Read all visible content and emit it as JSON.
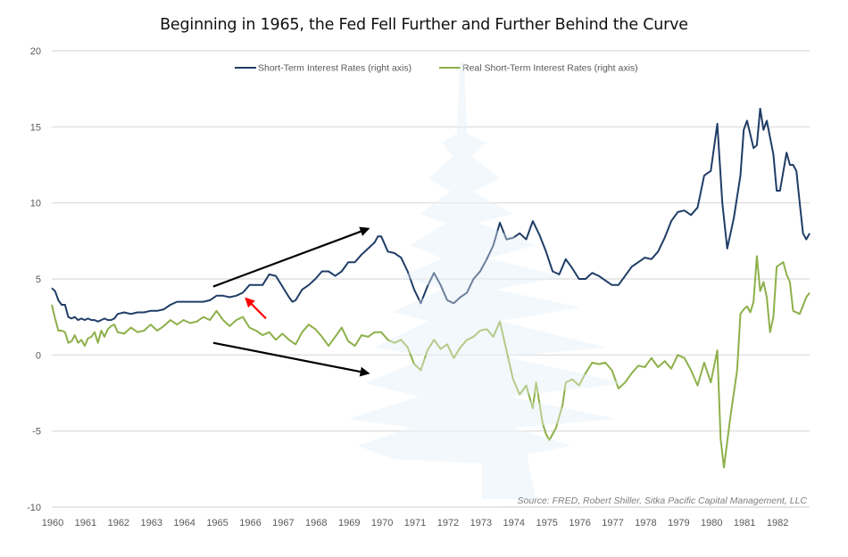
{
  "chart_data": {
    "type": "line",
    "title": "Beginning in 1965, the Fed Fell Further and Further Behind the Curve",
    "xlabel": "",
    "ylabel": "",
    "xlim": [
      1960,
      1983
    ],
    "ylim": [
      -10,
      20
    ],
    "y_ticks": [
      "20",
      "15",
      "10",
      "5",
      "0",
      "-5",
      "-10"
    ],
    "y_tick_values": [
      20,
      15,
      10,
      5,
      0,
      -5,
      -10
    ],
    "x_ticks": [
      "1960",
      "1961",
      "1962",
      "1963",
      "1964",
      "1965",
      "1966",
      "1967",
      "1968",
      "1969",
      "1970",
      "1971",
      "1972",
      "1973",
      "1974",
      "1975",
      "1976",
      "1977",
      "1978",
      "1979",
      "1980",
      "1981",
      "1982"
    ],
    "grid": true,
    "legend_position": "top",
    "source": "Source: FRED, Robert Shiller, Sitka Pacific Capital Management, LLC",
    "series": [
      {
        "name": "Short-Term Interest Rates (right axis)",
        "color": "#1f3d66",
        "points": [
          [
            1960.0,
            4.4
          ],
          [
            1960.1,
            4.2
          ],
          [
            1960.2,
            3.6
          ],
          [
            1960.3,
            3.3
          ],
          [
            1960.4,
            3.3
          ],
          [
            1960.5,
            2.5
          ],
          [
            1960.6,
            2.4
          ],
          [
            1960.7,
            2.5
          ],
          [
            1960.8,
            2.3
          ],
          [
            1960.9,
            2.4
          ],
          [
            1961.0,
            2.3
          ],
          [
            1961.1,
            2.4
          ],
          [
            1961.2,
            2.3
          ],
          [
            1961.3,
            2.3
          ],
          [
            1961.4,
            2.2
          ],
          [
            1961.5,
            2.3
          ],
          [
            1961.6,
            2.4
          ],
          [
            1961.7,
            2.3
          ],
          [
            1961.8,
            2.3
          ],
          [
            1961.9,
            2.4
          ],
          [
            1962.0,
            2.7
          ],
          [
            1962.2,
            2.8
          ],
          [
            1962.4,
            2.7
          ],
          [
            1962.6,
            2.8
          ],
          [
            1962.8,
            2.8
          ],
          [
            1963.0,
            2.9
          ],
          [
            1963.2,
            2.9
          ],
          [
            1963.4,
            3.0
          ],
          [
            1963.6,
            3.3
          ],
          [
            1963.8,
            3.5
          ],
          [
            1964.0,
            3.5
          ],
          [
            1964.2,
            3.5
          ],
          [
            1964.4,
            3.5
          ],
          [
            1964.6,
            3.5
          ],
          [
            1964.8,
            3.6
          ],
          [
            1965.0,
            3.9
          ],
          [
            1965.2,
            3.9
          ],
          [
            1965.4,
            3.8
          ],
          [
            1965.6,
            3.9
          ],
          [
            1965.8,
            4.1
          ],
          [
            1966.0,
            4.6
          ],
          [
            1966.2,
            4.6
          ],
          [
            1966.4,
            4.6
          ],
          [
            1966.6,
            5.3
          ],
          [
            1966.8,
            5.2
          ],
          [
            1967.0,
            4.5
          ],
          [
            1967.2,
            3.8
          ],
          [
            1967.3,
            3.5
          ],
          [
            1967.4,
            3.6
          ],
          [
            1967.6,
            4.3
          ],
          [
            1967.8,
            4.6
          ],
          [
            1968.0,
            5.0
          ],
          [
            1968.2,
            5.5
          ],
          [
            1968.4,
            5.5
          ],
          [
            1968.6,
            5.2
          ],
          [
            1968.8,
            5.5
          ],
          [
            1969.0,
            6.1
          ],
          [
            1969.2,
            6.1
          ],
          [
            1969.4,
            6.6
          ],
          [
            1969.6,
            7.0
          ],
          [
            1969.8,
            7.4
          ],
          [
            1969.9,
            7.8
          ],
          [
            1970.0,
            7.8
          ],
          [
            1970.2,
            6.8
          ],
          [
            1970.4,
            6.7
          ],
          [
            1970.6,
            6.4
          ],
          [
            1970.8,
            5.5
          ],
          [
            1971.0,
            4.3
          ],
          [
            1971.2,
            3.4
          ],
          [
            1971.4,
            4.5
          ],
          [
            1971.6,
            5.4
          ],
          [
            1971.8,
            4.6
          ],
          [
            1972.0,
            3.6
          ],
          [
            1972.2,
            3.4
          ],
          [
            1972.4,
            3.8
          ],
          [
            1972.6,
            4.1
          ],
          [
            1972.8,
            5.0
          ],
          [
            1973.0,
            5.5
          ],
          [
            1973.2,
            6.3
          ],
          [
            1973.4,
            7.2
          ],
          [
            1973.6,
            8.7
          ],
          [
            1973.8,
            7.6
          ],
          [
            1974.0,
            7.7
          ],
          [
            1974.2,
            8.0
          ],
          [
            1974.4,
            7.6
          ],
          [
            1974.6,
            8.8
          ],
          [
            1974.8,
            7.9
          ],
          [
            1975.0,
            6.8
          ],
          [
            1975.2,
            5.5
          ],
          [
            1975.4,
            5.3
          ],
          [
            1975.6,
            6.3
          ],
          [
            1975.8,
            5.7
          ],
          [
            1976.0,
            5.0
          ],
          [
            1976.2,
            5.0
          ],
          [
            1976.4,
            5.4
          ],
          [
            1976.6,
            5.2
          ],
          [
            1976.8,
            4.9
          ],
          [
            1977.0,
            4.6
          ],
          [
            1977.2,
            4.6
          ],
          [
            1977.4,
            5.2
          ],
          [
            1977.6,
            5.8
          ],
          [
            1977.8,
            6.1
          ],
          [
            1978.0,
            6.4
          ],
          [
            1978.2,
            6.3
          ],
          [
            1978.4,
            6.8
          ],
          [
            1978.6,
            7.7
          ],
          [
            1978.8,
            8.8
          ],
          [
            1979.0,
            9.4
          ],
          [
            1979.2,
            9.5
          ],
          [
            1979.4,
            9.2
          ],
          [
            1979.6,
            9.7
          ],
          [
            1979.8,
            11.8
          ],
          [
            1980.0,
            12.1
          ],
          [
            1980.2,
            15.2
          ],
          [
            1980.35,
            10.0
          ],
          [
            1980.5,
            7.0
          ],
          [
            1980.7,
            9.0
          ],
          [
            1980.9,
            11.8
          ],
          [
            1981.0,
            14.8
          ],
          [
            1981.1,
            15.4
          ],
          [
            1981.3,
            13.6
          ],
          [
            1981.4,
            13.8
          ],
          [
            1981.5,
            16.2
          ],
          [
            1981.6,
            14.8
          ],
          [
            1981.7,
            15.4
          ],
          [
            1981.9,
            13.2
          ],
          [
            1982.0,
            10.8
          ],
          [
            1982.1,
            10.8
          ],
          [
            1982.3,
            13.3
          ],
          [
            1982.4,
            12.5
          ],
          [
            1982.5,
            12.5
          ],
          [
            1982.6,
            12.1
          ],
          [
            1982.7,
            10.0
          ],
          [
            1982.8,
            8.0
          ],
          [
            1982.9,
            7.6
          ],
          [
            1983.0,
            8.0
          ]
        ]
      },
      {
        "name": "Real Short-Term Interest Rates (right axis)",
        "color": "#8db04a",
        "points": [
          [
            1960.0,
            3.3
          ],
          [
            1960.1,
            2.4
          ],
          [
            1960.2,
            1.6
          ],
          [
            1960.3,
            1.6
          ],
          [
            1960.4,
            1.5
          ],
          [
            1960.5,
            0.8
          ],
          [
            1960.6,
            0.9
          ],
          [
            1960.7,
            1.3
          ],
          [
            1960.8,
            0.8
          ],
          [
            1960.9,
            1.0
          ],
          [
            1961.0,
            0.6
          ],
          [
            1961.1,
            1.1
          ],
          [
            1961.2,
            1.2
          ],
          [
            1961.3,
            1.5
          ],
          [
            1961.4,
            0.8
          ],
          [
            1961.5,
            1.6
          ],
          [
            1961.6,
            1.2
          ],
          [
            1961.7,
            1.7
          ],
          [
            1961.8,
            1.9
          ],
          [
            1961.9,
            2.0
          ],
          [
            1962.0,
            1.5
          ],
          [
            1962.2,
            1.4
          ],
          [
            1962.4,
            1.8
          ],
          [
            1962.6,
            1.5
          ],
          [
            1962.8,
            1.6
          ],
          [
            1963.0,
            2.0
          ],
          [
            1963.2,
            1.6
          ],
          [
            1963.4,
            1.9
          ],
          [
            1963.6,
            2.3
          ],
          [
            1963.8,
            2.0
          ],
          [
            1964.0,
            2.3
          ],
          [
            1964.2,
            2.1
          ],
          [
            1964.4,
            2.2
          ],
          [
            1964.6,
            2.5
          ],
          [
            1964.8,
            2.3
          ],
          [
            1965.0,
            2.9
          ],
          [
            1965.2,
            2.3
          ],
          [
            1965.4,
            1.9
          ],
          [
            1965.6,
            2.3
          ],
          [
            1965.8,
            2.5
          ],
          [
            1966.0,
            1.8
          ],
          [
            1966.2,
            1.6
          ],
          [
            1966.4,
            1.3
          ],
          [
            1966.6,
            1.5
          ],
          [
            1966.8,
            1.0
          ],
          [
            1967.0,
            1.4
          ],
          [
            1967.2,
            1.0
          ],
          [
            1967.4,
            0.7
          ],
          [
            1967.6,
            1.5
          ],
          [
            1967.8,
            2.0
          ],
          [
            1968.0,
            1.7
          ],
          [
            1968.2,
            1.2
          ],
          [
            1968.4,
            0.6
          ],
          [
            1968.6,
            1.2
          ],
          [
            1968.8,
            1.8
          ],
          [
            1969.0,
            0.9
          ],
          [
            1969.2,
            0.6
          ],
          [
            1969.4,
            1.3
          ],
          [
            1969.6,
            1.2
          ],
          [
            1969.8,
            1.5
          ],
          [
            1970.0,
            1.5
          ],
          [
            1970.2,
            1.0
          ],
          [
            1970.4,
            0.8
          ],
          [
            1970.6,
            1.0
          ],
          [
            1970.8,
            0.5
          ],
          [
            1971.0,
            -0.6
          ],
          [
            1971.2,
            -1.0
          ],
          [
            1971.4,
            0.3
          ],
          [
            1971.6,
            1.0
          ],
          [
            1971.8,
            0.4
          ],
          [
            1972.0,
            0.7
          ],
          [
            1972.2,
            -0.2
          ],
          [
            1972.4,
            0.5
          ],
          [
            1972.6,
            1.0
          ],
          [
            1972.8,
            1.2
          ],
          [
            1973.0,
            1.6
          ],
          [
            1973.2,
            1.7
          ],
          [
            1973.4,
            1.2
          ],
          [
            1973.6,
            2.2
          ],
          [
            1973.8,
            0.3
          ],
          [
            1974.0,
            -1.6
          ],
          [
            1974.2,
            -2.6
          ],
          [
            1974.4,
            -2.0
          ],
          [
            1974.6,
            -3.5
          ],
          [
            1974.7,
            -1.8
          ],
          [
            1974.9,
            -4.5
          ],
          [
            1975.0,
            -5.2
          ],
          [
            1975.1,
            -5.6
          ],
          [
            1975.3,
            -4.8
          ],
          [
            1975.5,
            -3.3
          ],
          [
            1975.6,
            -1.8
          ],
          [
            1975.8,
            -1.6
          ],
          [
            1976.0,
            -2.0
          ],
          [
            1976.2,
            -1.2
          ],
          [
            1976.4,
            -0.5
          ],
          [
            1976.6,
            -0.6
          ],
          [
            1976.8,
            -0.5
          ],
          [
            1977.0,
            -1.0
          ],
          [
            1977.2,
            -2.2
          ],
          [
            1977.4,
            -1.8
          ],
          [
            1977.6,
            -1.2
          ],
          [
            1977.8,
            -0.7
          ],
          [
            1978.0,
            -0.8
          ],
          [
            1978.2,
            -0.2
          ],
          [
            1978.4,
            -0.8
          ],
          [
            1978.6,
            -0.4
          ],
          [
            1978.8,
            -0.9
          ],
          [
            1979.0,
            0.0
          ],
          [
            1979.2,
            -0.2
          ],
          [
            1979.4,
            -1.0
          ],
          [
            1979.6,
            -2.0
          ],
          [
            1979.8,
            -0.5
          ],
          [
            1980.0,
            -1.8
          ],
          [
            1980.2,
            0.3
          ],
          [
            1980.3,
            -5.5
          ],
          [
            1980.4,
            -7.4
          ],
          [
            1980.6,
            -4.0
          ],
          [
            1980.8,
            -1.0
          ],
          [
            1980.9,
            2.7
          ],
          [
            1981.0,
            3.0
          ],
          [
            1981.1,
            3.2
          ],
          [
            1981.2,
            2.8
          ],
          [
            1981.3,
            3.5
          ],
          [
            1981.4,
            6.5
          ],
          [
            1981.5,
            4.2
          ],
          [
            1981.6,
            4.8
          ],
          [
            1981.7,
            3.8
          ],
          [
            1981.8,
            1.5
          ],
          [
            1981.9,
            2.5
          ],
          [
            1982.0,
            5.8
          ],
          [
            1982.2,
            6.1
          ],
          [
            1982.3,
            5.3
          ],
          [
            1982.4,
            4.8
          ],
          [
            1982.5,
            2.9
          ],
          [
            1982.7,
            2.7
          ],
          [
            1982.9,
            3.8
          ],
          [
            1983.0,
            4.1
          ]
        ]
      }
    ],
    "annotations": [
      {
        "type": "arrow",
        "color": "#000000",
        "from": [
          1964.9,
          4.5
        ],
        "to": [
          1969.6,
          8.3
        ],
        "meaning": "rising short-term rates"
      },
      {
        "type": "arrow",
        "color": "#000000",
        "from": [
          1964.9,
          0.8
        ],
        "to": [
          1969.6,
          -1.2
        ],
        "meaning": "falling real rates"
      },
      {
        "type": "arrow",
        "color": "#ff0000",
        "from": [
          1966.5,
          2.4
        ],
        "to": [
          1965.9,
          3.7
        ],
        "meaning": "1965 inflection point"
      }
    ]
  }
}
